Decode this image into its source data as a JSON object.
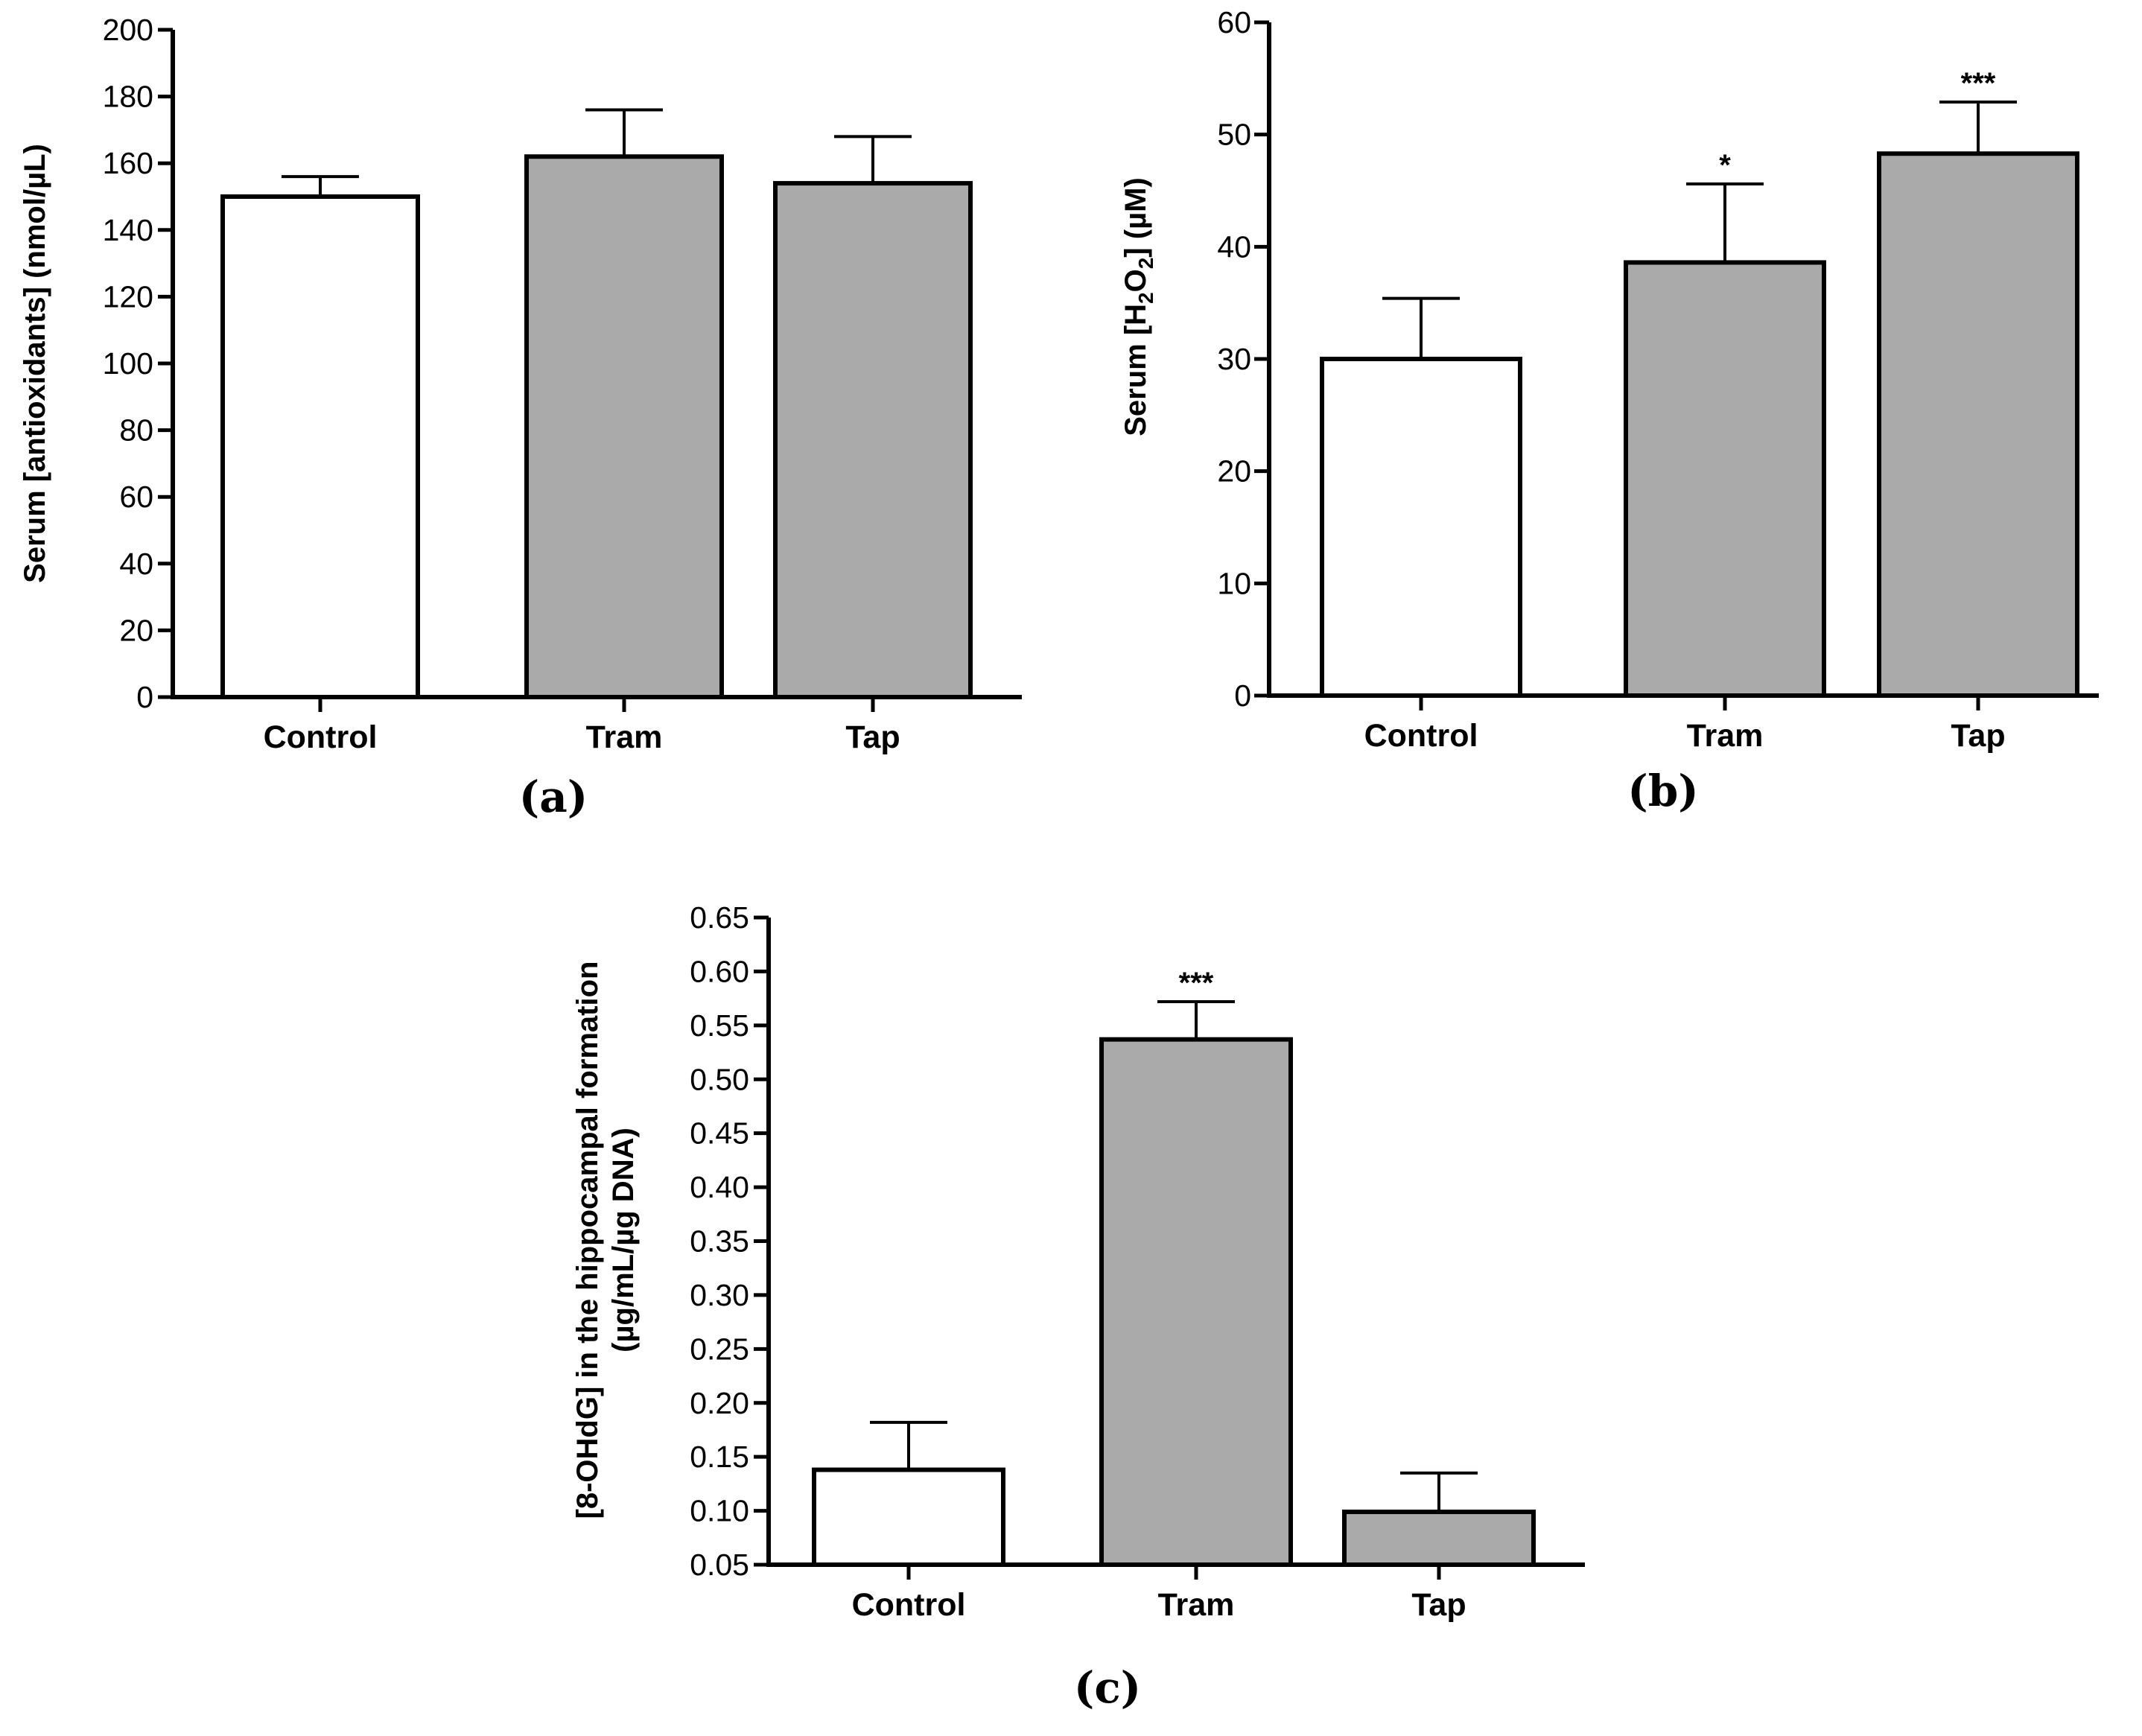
{
  "chart_data": [
    {
      "panel": "(a)",
      "type": "bar",
      "ylabel": "Serum [antioxidants] (nmol/µL)",
      "ylim": [
        0,
        200
      ],
      "yticks": [
        0,
        20,
        40,
        60,
        80,
        100,
        120,
        140,
        160,
        180,
        200
      ],
      "ytick_labels": [
        "0",
        "20",
        "40",
        "60",
        "80",
        "100",
        "120",
        "140",
        "160",
        "180",
        "200"
      ],
      "categories": [
        "Control",
        "Tram",
        "Tap"
      ],
      "values": [
        150,
        162,
        154
      ],
      "errors": [
        6,
        14,
        14
      ],
      "significance": [
        "",
        "",
        ""
      ],
      "colors": [
        "#ffffff",
        "#aaaaaa",
        "#aaaaaa"
      ]
    },
    {
      "panel": "(b)",
      "type": "bar",
      "ylabel_parts": [
        "Serum [H",
        "2",
        "O",
        "2",
        "] (µM)"
      ],
      "ylim": [
        0,
        60
      ],
      "yticks": [
        0,
        10,
        20,
        30,
        40,
        50,
        60
      ],
      "ytick_labels": [
        "0",
        "10",
        "20",
        "30",
        "40",
        "50",
        "60"
      ],
      "categories": [
        "Control",
        "Tram",
        "Tap"
      ],
      "values": [
        30,
        38.6,
        48.3
      ],
      "errors": [
        5.4,
        7,
        4.6
      ],
      "significance": [
        "",
        "*",
        "***"
      ],
      "colors": [
        "#ffffff",
        "#aaaaaa",
        "#aaaaaa"
      ]
    },
    {
      "panel": "(c)",
      "type": "bar",
      "ylabel_lines": [
        "[8-OHdG] in the hippocampal formation",
        "(µg/mL/µg DNA)"
      ],
      "ylim": [
        0.05,
        0.65
      ],
      "yticks": [
        0.05,
        0.1,
        0.15,
        0.2,
        0.25,
        0.3,
        0.35,
        0.4,
        0.45,
        0.5,
        0.55,
        0.6,
        0.65
      ],
      "ytick_labels": [
        "0.05",
        "0.10",
        "0.15",
        "0.20",
        "0.25",
        "0.30",
        "0.35",
        "0.40",
        "0.45",
        "0.50",
        "0.55",
        "0.60",
        "0.65"
      ],
      "categories": [
        "Control",
        "Tram",
        "Tap"
      ],
      "values": [
        0.138,
        0.537,
        0.099
      ],
      "errors": [
        0.044,
        0.035,
        0.036
      ],
      "significance": [
        "",
        "***",
        ""
      ],
      "colors": [
        "#ffffff",
        "#aaaaaa",
        "#aaaaaa"
      ]
    }
  ]
}
